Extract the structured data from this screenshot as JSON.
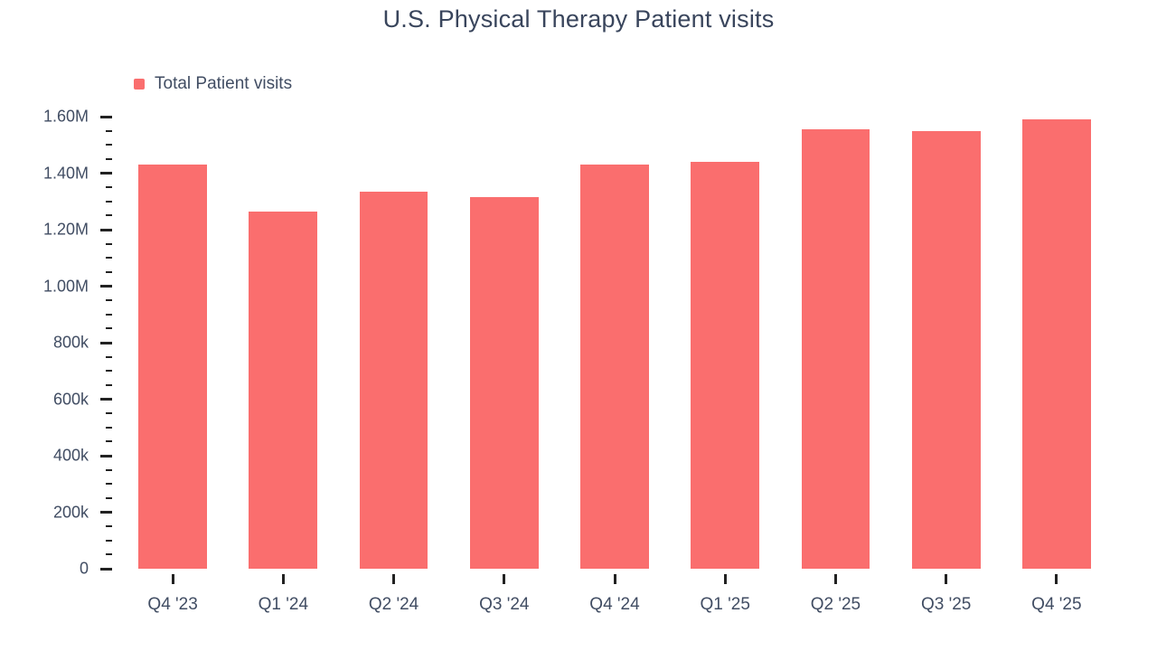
{
  "title": "U.S. Physical Therapy Patient visits",
  "legend": {
    "label": "Total Patient visits"
  },
  "colors": {
    "bar": "#fa6e6e",
    "title": "#39455c",
    "axis_label": "#414d63",
    "tick": "#222222",
    "background": "#ffffff"
  },
  "chart_data": {
    "type": "bar",
    "title": "U.S. Physical Therapy Patient visits",
    "series_name": "Total Patient visits",
    "categories": [
      "Q4 '23",
      "Q1 '24",
      "Q2 '24",
      "Q3 '24",
      "Q4 '24",
      "Q1 '25",
      "Q2 '25",
      "Q3 '25",
      "Q4 '25"
    ],
    "values": [
      1430000,
      1265000,
      1335000,
      1315000,
      1430000,
      1440000,
      1555000,
      1550000,
      1590000
    ],
    "xlabel": "",
    "ylabel": "",
    "ylim": [
      0,
      1600000
    ],
    "y_ticks": [
      {
        "value": 0,
        "label": "0"
      },
      {
        "value": 200000,
        "label": "200k"
      },
      {
        "value": 400000,
        "label": "400k"
      },
      {
        "value": 600000,
        "label": "600k"
      },
      {
        "value": 800000,
        "label": "800k"
      },
      {
        "value": 1000000,
        "label": "1.00M"
      },
      {
        "value": 1200000,
        "label": "1.20M"
      },
      {
        "value": 1400000,
        "label": "1.40M"
      },
      {
        "value": 1600000,
        "label": "1.60M"
      }
    ],
    "y_minor_tick_step": 50000,
    "grid": false,
    "legend_position": "top-left"
  }
}
